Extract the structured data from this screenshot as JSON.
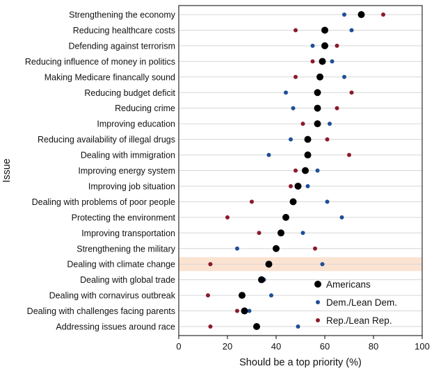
{
  "chart_data": {
    "type": "scatter",
    "xlabel": "Should be a top priority (%)",
    "ylabel": "Issue",
    "xlim": [
      0,
      100
    ],
    "xticks": [
      "0",
      "20",
      "40",
      "60",
      "80",
      "100"
    ],
    "highlight_category": "Dealing with climate change",
    "grid": "horizontal",
    "legend_position": "bottom-right",
    "categories": [
      "Strengthening the economy",
      "Reducing healthcare costs",
      "Defending against terrorism",
      "Reducing influence of money in politics",
      "Making Medicare financally sound",
      "Reducing budget deficit",
      "Reducing crime",
      "Improving education",
      "Reducing availability of illegal drugs",
      "Dealing with immigration",
      "Improving energy system",
      "Improving job situation",
      "Dealing with problems of poor people",
      "Protecting the environment",
      "Improving transportation",
      "Strengthening the military",
      "Dealing with climate change",
      "Dealing with global trade",
      "Dealing with cornavirus outbreak",
      "Dealing with challenges facing parents",
      "Addressing issues around race"
    ],
    "series": [
      {
        "name": "Americans",
        "color": "#000000",
        "values": [
          75,
          60,
          60,
          59,
          58,
          57,
          57,
          57,
          53,
          53,
          52,
          49,
          47,
          44,
          42,
          40,
          37,
          34,
          26,
          27,
          32
        ]
      },
      {
        "name": "Dem./Lean Dem.",
        "color": "#1f4e96",
        "values": [
          68,
          71,
          55,
          63,
          68,
          44,
          47,
          62,
          46,
          37,
          57,
          53,
          61,
          67,
          51,
          24,
          59,
          35,
          38,
          29,
          49
        ]
      },
      {
        "name": "Rep./Lean Rep.",
        "color": "#8b1a2b",
        "values": [
          84,
          48,
          65,
          55,
          48,
          71,
          65,
          51,
          61,
          70,
          48,
          46,
          30,
          20,
          33,
          56,
          13,
          34,
          12,
          24,
          13
        ]
      }
    ]
  }
}
